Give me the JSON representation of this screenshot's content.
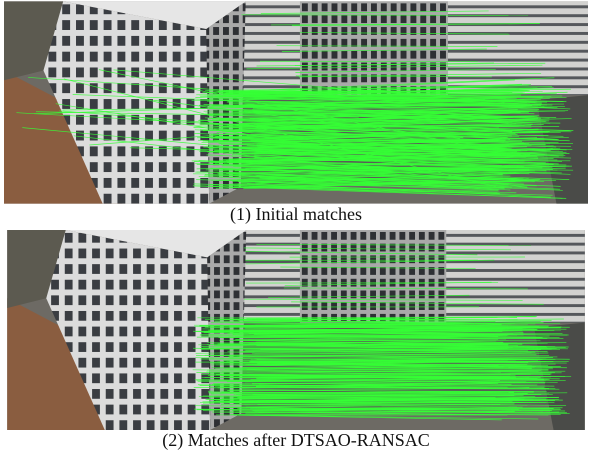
{
  "figure": {
    "panels": [
      {
        "caption": "(1) Initial matches"
      },
      {
        "caption": "(2) Matches after DTSAO-RANSAC"
      }
    ]
  }
}
